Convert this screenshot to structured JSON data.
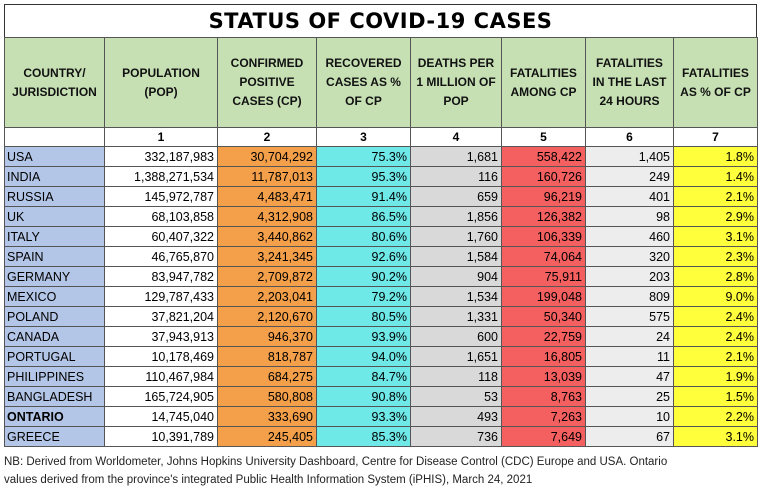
{
  "title": "STATUS OF COVID-19 CASES",
  "headers": [
    "COUNTRY/ JURISDICTION",
    "POPULATION (POP)",
    "CONFIRMED POSITIVE CASES (CP)",
    "RECOVERED CASES AS % OF CP",
    "DEATHS PER 1 MILLION OF POP",
    "FATALITIES AMONG CP",
    "FATALITIES IN THE LAST 24 HOURS",
    "FATALITIES AS % OF CP"
  ],
  "column_numbers": [
    "",
    "1",
    "2",
    "3",
    "4",
    "5",
    "6",
    "7"
  ],
  "rows": [
    {
      "country": "USA",
      "pop": "332,187,983",
      "cp": "30,704,292",
      "rec": "75.3%",
      "dpm": "1,681",
      "fat": "558,422",
      "f24": "1,405",
      "pct": "1.8%",
      "bold": false
    },
    {
      "country": "INDIA",
      "pop": "1,388,271,534",
      "cp": "11,787,013",
      "rec": "95.3%",
      "dpm": "116",
      "fat": "160,726",
      "f24": "249",
      "pct": "1.4%",
      "bold": false
    },
    {
      "country": "RUSSIA",
      "pop": "145,972,787",
      "cp": "4,483,471",
      "rec": "91.4%",
      "dpm": "659",
      "fat": "96,219",
      "f24": "401",
      "pct": "2.1%",
      "bold": false
    },
    {
      "country": "UK",
      "pop": "68,103,858",
      "cp": "4,312,908",
      "rec": "86.5%",
      "dpm": "1,856",
      "fat": "126,382",
      "f24": "98",
      "pct": "2.9%",
      "bold": false
    },
    {
      "country": "ITALY",
      "pop": "60,407,322",
      "cp": "3,440,862",
      "rec": "80.6%",
      "dpm": "1,760",
      "fat": "106,339",
      "f24": "460",
      "pct": "3.1%",
      "bold": false
    },
    {
      "country": "SPAIN",
      "pop": "46,765,870",
      "cp": "3,241,345",
      "rec": "92.6%",
      "dpm": "1,584",
      "fat": "74,064",
      "f24": "320",
      "pct": "2.3%",
      "bold": false
    },
    {
      "country": "GERMANY",
      "pop": "83,947,782",
      "cp": "2,709,872",
      "rec": "90.2%",
      "dpm": "904",
      "fat": "75,911",
      "f24": "203",
      "pct": "2.8%",
      "bold": false
    },
    {
      "country": "MEXICO",
      "pop": "129,787,433",
      "cp": "2,203,041",
      "rec": "79.2%",
      "dpm": "1,534",
      "fat": "199,048",
      "f24": "809",
      "pct": "9.0%",
      "bold": false
    },
    {
      "country": "POLAND",
      "pop": "37,821,204",
      "cp": "2,120,670",
      "rec": "80.5%",
      "dpm": "1,331",
      "fat": "50,340",
      "f24": "575",
      "pct": "2.4%",
      "bold": false
    },
    {
      "country": "CANADA",
      "pop": "37,943,913",
      "cp": "946,370",
      "rec": "93.9%",
      "dpm": "600",
      "fat": "22,759",
      "f24": "24",
      "pct": "2.4%",
      "bold": false
    },
    {
      "country": "PORTUGAL",
      "pop": "10,178,469",
      "cp": "818,787",
      "rec": "94.0%",
      "dpm": "1,651",
      "fat": "16,805",
      "f24": "11",
      "pct": "2.1%",
      "bold": false
    },
    {
      "country": "PHILIPPINES",
      "pop": "110,467,984",
      "cp": "684,275",
      "rec": "84.7%",
      "dpm": "118",
      "fat": "13,039",
      "f24": "47",
      "pct": "1.9%",
      "bold": false
    },
    {
      "country": "BANGLADESH",
      "pop": "165,724,905",
      "cp": "580,808",
      "rec": "90.8%",
      "dpm": "53",
      "fat": "8,763",
      "f24": "25",
      "pct": "1.5%",
      "bold": false
    },
    {
      "country": "ONTARIO",
      "pop": "14,745,040",
      "cp": "333,690",
      "rec": "93.3%",
      "dpm": "493",
      "fat": "7,263",
      "f24": "10",
      "pct": "2.2%",
      "bold": true
    },
    {
      "country": "GREECE",
      "pop": "10,391,789",
      "cp": "245,405",
      "rec": "85.3%",
      "dpm": "736",
      "fat": "7,649",
      "f24": "67",
      "pct": "3.1%",
      "bold": false
    }
  ],
  "footnote_line1": "NB: Derived from Worldometer, Johns Hopkins University Dashboard, Centre for Disease Control (CDC) Europe and USA. Ontario",
  "footnote_line2": "values derived from the province's integrated Public Health Information System (iPHIS), March 24, 2021"
}
